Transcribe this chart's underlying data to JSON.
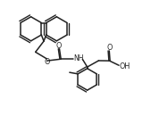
{
  "bg_color": "#ffffff",
  "line_color": "#222222",
  "lw": 1.1,
  "figsize": [
    1.69,
    1.39
  ],
  "dpi": 100,
  "xlim": [
    0,
    10
  ],
  "ylim": [
    0,
    8.2
  ]
}
